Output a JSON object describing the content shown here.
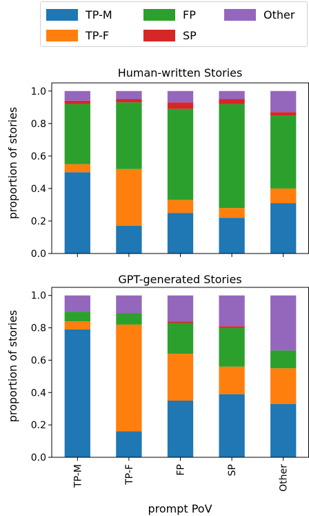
{
  "colors": {
    "TP-M": "#1f77b4",
    "TP-F": "#ff7f0e",
    "FP": "#2ca02c",
    "SP": "#d62728",
    "Other": "#9467bd"
  },
  "legend": {
    "entries": [
      "TP-M",
      "FP",
      "Other",
      "TP-F",
      "SP"
    ]
  },
  "chart_data": [
    {
      "type": "bar",
      "stacked": true,
      "title": "Human-written Stories",
      "xlabel": "",
      "ylabel": "proportion of stories",
      "ylim": [
        0,
        1.05
      ],
      "yticks": [
        "0.0",
        "0.2",
        "0.4",
        "0.6",
        "0.8",
        "1.0"
      ],
      "categories": [
        "TP-M",
        "TP-F",
        "FP",
        "SP",
        "Other"
      ],
      "series": [
        {
          "name": "TP-M",
          "values": [
            0.5,
            0.17,
            0.25,
            0.22,
            0.31
          ]
        },
        {
          "name": "TP-F",
          "values": [
            0.05,
            0.35,
            0.08,
            0.06,
            0.09
          ]
        },
        {
          "name": "FP",
          "values": [
            0.37,
            0.41,
            0.56,
            0.64,
            0.45
          ]
        },
        {
          "name": "SP",
          "values": [
            0.02,
            0.02,
            0.04,
            0.03,
            0.02
          ]
        },
        {
          "name": "Other",
          "values": [
            0.06,
            0.05,
            0.07,
            0.05,
            0.13
          ]
        }
      ]
    },
    {
      "type": "bar",
      "stacked": true,
      "title": "GPT-generated Stories",
      "xlabel": "prompt PoV",
      "ylabel": "proportion of stories",
      "ylim": [
        0,
        1.05
      ],
      "yticks": [
        "0.0",
        "0.2",
        "0.4",
        "0.6",
        "0.8",
        "1.0"
      ],
      "categories": [
        "TP-M",
        "TP-F",
        "FP",
        "SP",
        "Other"
      ],
      "series": [
        {
          "name": "TP-M",
          "values": [
            0.79,
            0.16,
            0.35,
            0.39,
            0.33
          ]
        },
        {
          "name": "TP-F",
          "values": [
            0.05,
            0.66,
            0.29,
            0.17,
            0.22
          ]
        },
        {
          "name": "FP",
          "values": [
            0.06,
            0.07,
            0.19,
            0.24,
            0.11
          ]
        },
        {
          "name": "SP",
          "values": [
            0.0,
            0.0,
            0.01,
            0.01,
            0.0
          ]
        },
        {
          "name": "Other",
          "values": [
            0.1,
            0.11,
            0.16,
            0.19,
            0.34
          ]
        }
      ]
    }
  ]
}
